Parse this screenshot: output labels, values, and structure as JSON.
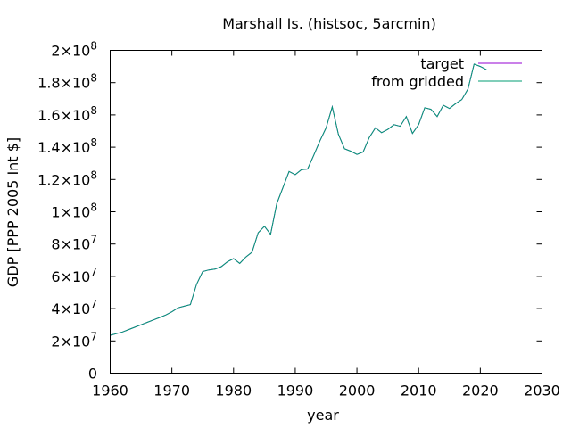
{
  "chart_data": {
    "type": "line",
    "title": "Marshall Is. (histsoc, 5arcmin)",
    "xlabel": "year",
    "ylabel": "GDP [PPP 2005 Int $]",
    "xlim": [
      1960,
      2030
    ],
    "ylim": [
      0,
      200000000
    ],
    "x_ticks": [
      1960,
      1970,
      1980,
      1990,
      2000,
      2010,
      2020,
      2030
    ],
    "y_ticks": [
      {
        "value": 0,
        "mant": "0",
        "exp": ""
      },
      {
        "value": 20000000,
        "mant": "2×10",
        "exp": "7"
      },
      {
        "value": 40000000,
        "mant": "4×10",
        "exp": "7"
      },
      {
        "value": 60000000,
        "mant": "6×10",
        "exp": "7"
      },
      {
        "value": 80000000,
        "mant": "8×10",
        "exp": "7"
      },
      {
        "value": 100000000,
        "mant": "1×10",
        "exp": "8"
      },
      {
        "value": 120000000,
        "mant": "1.2×10",
        "exp": "8"
      },
      {
        "value": 140000000,
        "mant": "1.4×10",
        "exp": "8"
      },
      {
        "value": 160000000,
        "mant": "1.6×10",
        "exp": "8"
      },
      {
        "value": 180000000,
        "mant": "1.8×10",
        "exp": "8"
      },
      {
        "value": 200000000,
        "mant": "2×10",
        "exp": "8"
      }
    ],
    "grid": false,
    "legend_position": "top-right",
    "series": [
      {
        "name": "target",
        "color": "#9400d3",
        "x": [
          1960,
          1961,
          1962,
          1963,
          1964,
          1965,
          1966,
          1967,
          1968,
          1969,
          1970,
          1971,
          1972,
          1973,
          1974,
          1975,
          1976,
          1977,
          1978,
          1979,
          1980,
          1981,
          1982,
          1983,
          1984,
          1985,
          1986,
          1987,
          1988,
          1989,
          1990,
          1991,
          1992,
          1993,
          1994,
          1995,
          1996,
          1997,
          1998,
          1999,
          2000,
          2001,
          2002,
          2003,
          2004,
          2005,
          2006,
          2007,
          2008,
          2009,
          2010,
          2011,
          2012,
          2013,
          2014,
          2015,
          2016,
          2017,
          2018,
          2019,
          2020,
          2021
        ],
        "y": [
          23500000,
          24500000,
          25500000,
          27000000,
          28500000,
          30000000,
          31500000,
          33000000,
          34500000,
          36000000,
          38000000,
          40500000,
          41500000,
          42500000,
          55000000,
          63000000,
          64000000,
          64500000,
          66000000,
          69000000,
          71000000,
          68000000,
          72000000,
          75000000,
          87000000,
          91000000,
          86000000,
          105000000,
          115000000,
          125000000,
          123000000,
          126000000,
          126500000,
          135000000,
          144000000,
          152000000,
          165000000,
          148000000,
          139000000,
          137500000,
          135500000,
          137000000,
          146000000,
          152000000,
          149000000,
          151000000,
          154000000,
          153000000,
          159000000,
          148500000,
          154000000,
          164500000,
          163500000,
          159000000,
          166000000,
          164000000,
          167000000,
          169500000,
          176000000,
          191500000,
          190000000,
          188000000
        ]
      },
      {
        "name": "from gridded",
        "color": "#009e73",
        "x": [
          1960,
          1961,
          1962,
          1963,
          1964,
          1965,
          1966,
          1967,
          1968,
          1969,
          1970,
          1971,
          1972,
          1973,
          1974,
          1975,
          1976,
          1977,
          1978,
          1979,
          1980,
          1981,
          1982,
          1983,
          1984,
          1985,
          1986,
          1987,
          1988,
          1989,
          1990,
          1991,
          1992,
          1993,
          1994,
          1995,
          1996,
          1997,
          1998,
          1999,
          2000,
          2001,
          2002,
          2003,
          2004,
          2005,
          2006,
          2007,
          2008,
          2009,
          2010,
          2011,
          2012,
          2013,
          2014,
          2015,
          2016,
          2017,
          2018,
          2019,
          2020,
          2021
        ],
        "y": [
          23500000,
          24500000,
          25500000,
          27000000,
          28500000,
          30000000,
          31500000,
          33000000,
          34500000,
          36000000,
          38000000,
          40500000,
          41500000,
          42500000,
          55000000,
          63000000,
          64000000,
          64500000,
          66000000,
          69000000,
          71000000,
          68000000,
          72000000,
          75000000,
          87000000,
          91000000,
          86000000,
          105000000,
          115000000,
          125000000,
          123000000,
          126000000,
          126500000,
          135000000,
          144000000,
          152000000,
          165000000,
          148000000,
          139000000,
          137500000,
          135500000,
          137000000,
          146000000,
          152000000,
          149000000,
          151000000,
          154000000,
          153000000,
          159000000,
          148500000,
          154000000,
          164500000,
          163500000,
          159000000,
          166000000,
          164000000,
          167000000,
          169500000,
          176000000,
          191500000,
          190000000,
          188000000
        ]
      }
    ]
  }
}
